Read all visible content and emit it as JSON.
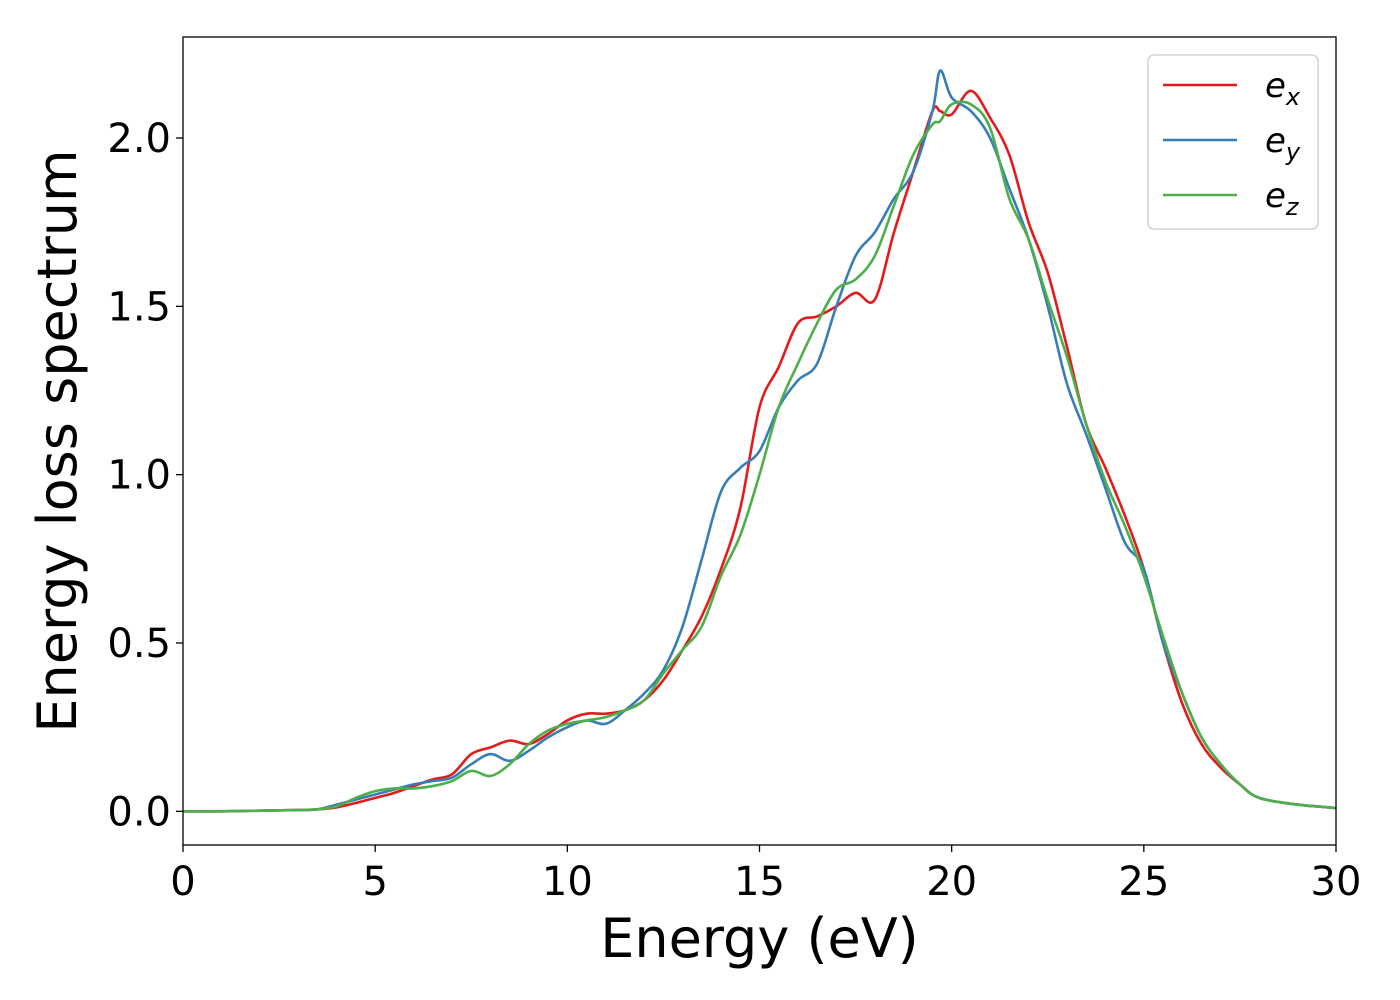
{
  "chart_data": {
    "type": "line",
    "xlabel": "Energy (eV)",
    "ylabel": "Energy loss spectrum",
    "xlim": [
      0,
      30
    ],
    "ylim": [
      -0.1,
      2.3
    ],
    "xticks": [
      "0",
      "5",
      "10",
      "15",
      "20",
      "25",
      "30"
    ],
    "yticks": [
      "0.0",
      "0.5",
      "1.0",
      "1.5",
      "2.0"
    ],
    "grid": false,
    "legend_position": "top-right",
    "x": [
      0,
      1,
      2,
      3,
      3.5,
      4,
      4.5,
      5,
      5.5,
      6,
      6.5,
      7,
      7.5,
      8,
      8.5,
      9,
      9.5,
      10,
      10.5,
      11,
      11.5,
      12,
      12.5,
      13,
      13.5,
      14,
      14.5,
      15,
      15.5,
      16,
      16.5,
      17,
      17.5,
      18,
      18.5,
      19,
      19.5,
      19.7,
      20,
      20.5,
      21,
      21.5,
      22,
      22.5,
      23,
      23.5,
      24,
      24.5,
      25,
      25.5,
      26,
      26.5,
      27,
      27.5,
      28,
      29,
      30
    ],
    "series": [
      {
        "name_base": "e",
        "name_sub": "x",
        "color": "#e41a1c",
        "values": [
          0,
          0,
          0.002,
          0.004,
          0.006,
          0.012,
          0.025,
          0.04,
          0.055,
          0.075,
          0.095,
          0.11,
          0.17,
          0.19,
          0.21,
          0.2,
          0.23,
          0.27,
          0.29,
          0.29,
          0.3,
          0.33,
          0.39,
          0.48,
          0.58,
          0.72,
          0.9,
          1.2,
          1.32,
          1.45,
          1.47,
          1.5,
          1.54,
          1.52,
          1.72,
          1.9,
          2.08,
          2.08,
          2.07,
          2.14,
          2.06,
          1.95,
          1.75,
          1.6,
          1.38,
          1.15,
          1.02,
          0.88,
          0.72,
          0.5,
          0.32,
          0.2,
          0.13,
          0.08,
          0.04,
          0.02,
          0.01
        ]
      },
      {
        "name_base": "e",
        "name_sub": "y",
        "color": "#377eb8",
        "values": [
          0,
          0,
          0.002,
          0.004,
          0.006,
          0.02,
          0.035,
          0.05,
          0.065,
          0.08,
          0.09,
          0.1,
          0.14,
          0.17,
          0.15,
          0.18,
          0.22,
          0.25,
          0.27,
          0.26,
          0.3,
          0.35,
          0.42,
          0.55,
          0.75,
          0.95,
          1.02,
          1.07,
          1.2,
          1.28,
          1.33,
          1.5,
          1.65,
          1.72,
          1.82,
          1.9,
          2.08,
          2.2,
          2.12,
          2.08,
          2.0,
          1.85,
          1.7,
          1.5,
          1.27,
          1.12,
          0.96,
          0.8,
          0.72,
          0.5,
          0.35,
          0.22,
          0.14,
          0.08,
          0.04,
          0.02,
          0.01
        ]
      },
      {
        "name_base": "e",
        "name_sub": "z",
        "color": "#4daf4a",
        "values": [
          0,
          0,
          0.002,
          0.004,
          0.006,
          0.015,
          0.04,
          0.06,
          0.068,
          0.068,
          0.075,
          0.09,
          0.12,
          0.105,
          0.14,
          0.2,
          0.24,
          0.26,
          0.27,
          0.28,
          0.3,
          0.33,
          0.41,
          0.48,
          0.55,
          0.7,
          0.82,
          1.0,
          1.2,
          1.33,
          1.45,
          1.55,
          1.58,
          1.65,
          1.8,
          1.95,
          2.04,
          2.05,
          2.1,
          2.1,
          2.03,
          1.82,
          1.7,
          1.52,
          1.35,
          1.15,
          0.98,
          0.85,
          0.7,
          0.52,
          0.35,
          0.22,
          0.14,
          0.08,
          0.04,
          0.02,
          0.01
        ]
      }
    ]
  }
}
